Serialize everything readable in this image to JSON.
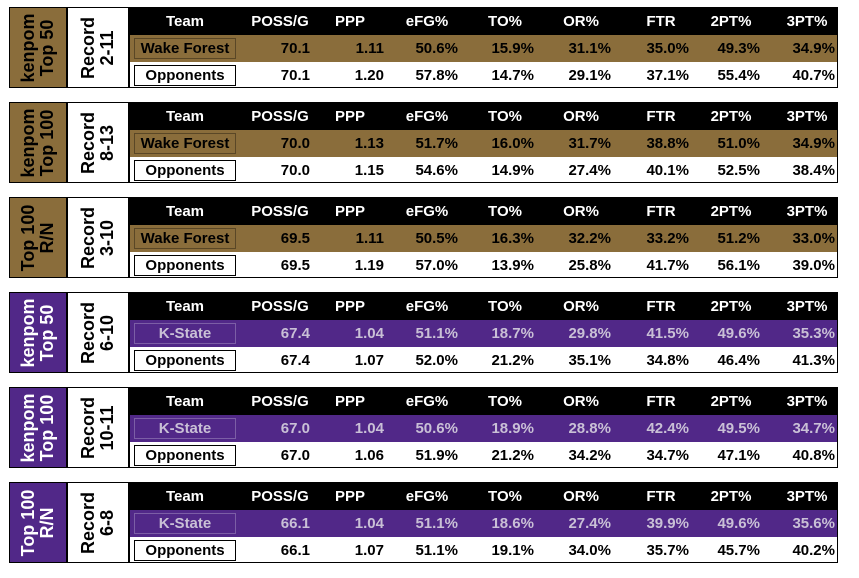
{
  "headers": [
    "Team",
    "POSS/G",
    "PPP",
    "eFG%",
    "TO%",
    "OR%",
    "FTR",
    "2PT%",
    "3PT%"
  ],
  "blocks": [
    {
      "theme": "gold",
      "group_line1": "kenpom",
      "group_line2": "Top 50",
      "record_label": "Record",
      "record": "2-11",
      "team": {
        "name": "Wake Forest",
        "poss": "70.1",
        "ppp": "1.11",
        "efg": "50.6%",
        "to": "15.9%",
        "or": "31.1%",
        "ftr": "35.0%",
        "pt2": "49.3%",
        "pt3": "34.9%"
      },
      "opp": {
        "name": "Opponents",
        "poss": "70.1",
        "ppp": "1.20",
        "efg": "57.8%",
        "to": "14.7%",
        "or": "29.1%",
        "ftr": "37.1%",
        "pt2": "55.4%",
        "pt3": "40.7%"
      }
    },
    {
      "theme": "gold",
      "group_line1": "kenpom",
      "group_line2": "Top 100",
      "record_label": "Record",
      "record": "8-13",
      "team": {
        "name": "Wake Forest",
        "poss": "70.0",
        "ppp": "1.13",
        "efg": "51.7%",
        "to": "16.0%",
        "or": "31.7%",
        "ftr": "38.8%",
        "pt2": "51.0%",
        "pt3": "34.9%"
      },
      "opp": {
        "name": "Opponents",
        "poss": "70.0",
        "ppp": "1.15",
        "efg": "54.6%",
        "to": "14.9%",
        "or": "27.4%",
        "ftr": "40.1%",
        "pt2": "52.5%",
        "pt3": "38.4%"
      }
    },
    {
      "theme": "gold",
      "group_line1": "Top 100",
      "group_line2": "R/N",
      "record_label": "Record",
      "record": "3-10",
      "team": {
        "name": "Wake Forest",
        "poss": "69.5",
        "ppp": "1.11",
        "efg": "50.5%",
        "to": "16.3%",
        "or": "32.2%",
        "ftr": "33.2%",
        "pt2": "51.2%",
        "pt3": "33.0%"
      },
      "opp": {
        "name": "Opponents",
        "poss": "69.5",
        "ppp": "1.19",
        "efg": "57.0%",
        "to": "13.9%",
        "or": "25.8%",
        "ftr": "41.7%",
        "pt2": "56.1%",
        "pt3": "39.0%"
      }
    },
    {
      "theme": "purple",
      "group_line1": "kenpom",
      "group_line2": "Top 50",
      "record_label": "Record",
      "record": "6-10",
      "team": {
        "name": "K-State",
        "poss": "67.4",
        "ppp": "1.04",
        "efg": "51.1%",
        "to": "18.7%",
        "or": "29.8%",
        "ftr": "41.5%",
        "pt2": "49.6%",
        "pt3": "35.3%"
      },
      "opp": {
        "name": "Opponents",
        "poss": "67.4",
        "ppp": "1.07",
        "efg": "52.0%",
        "to": "21.2%",
        "or": "35.1%",
        "ftr": "34.8%",
        "pt2": "46.4%",
        "pt3": "41.3%"
      }
    },
    {
      "theme": "purple",
      "group_line1": "kenpom",
      "group_line2": "Top 100",
      "record_label": "Record",
      "record": "10-11",
      "team": {
        "name": "K-State",
        "poss": "67.0",
        "ppp": "1.04",
        "efg": "50.6%",
        "to": "18.9%",
        "or": "28.8%",
        "ftr": "42.4%",
        "pt2": "49.5%",
        "pt3": "34.7%"
      },
      "opp": {
        "name": "Opponents",
        "poss": "67.0",
        "ppp": "1.06",
        "efg": "51.9%",
        "to": "21.2%",
        "or": "34.2%",
        "ftr": "34.7%",
        "pt2": "47.1%",
        "pt3": "40.8%"
      }
    },
    {
      "theme": "purple",
      "group_line1": "Top 100",
      "group_line2": "R/N",
      "record_label": "Record",
      "record": "6-8",
      "team": {
        "name": "K-State",
        "poss": "66.1",
        "ppp": "1.04",
        "efg": "51.1%",
        "to": "18.6%",
        "or": "27.4%",
        "ftr": "39.9%",
        "pt2": "49.6%",
        "pt3": "35.6%"
      },
      "opp": {
        "name": "Opponents",
        "poss": "66.1",
        "ppp": "1.07",
        "efg": "51.1%",
        "to": "19.1%",
        "or": "34.0%",
        "ftr": "35.7%",
        "pt2": "45.7%",
        "pt3": "40.2%"
      }
    }
  ],
  "colors": {
    "gold": "#8a6d3b",
    "purple": "#512888",
    "header": "#000000"
  }
}
